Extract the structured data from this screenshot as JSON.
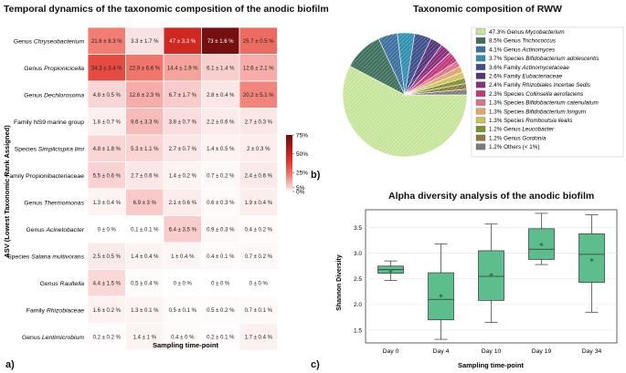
{
  "panels": {
    "a": {
      "title": "Temporal dynamics of the taxonomic composition of the anodic biofilm",
      "label": "a)",
      "ylabel": "ASV (Lowest Taxonomic Rank Assigned)",
      "xlabel": "Sampling time-point"
    },
    "b": {
      "title": "Taxonomic composition of RWW",
      "label": "b)"
    },
    "c": {
      "title": "Alpha diversity analysis of the anodic biofilm",
      "label": "c)",
      "ylabel": "Shannon Diversity",
      "xlabel": "Sampling time-point"
    }
  },
  "colors": {
    "heat_low": "#ffffff",
    "heat_high": "#6e0e0e",
    "box_fill": "#5dbd8d",
    "box_edge": "#333333",
    "mean_marker": "#2d7d55"
  },
  "chart_data": [
    {
      "type": "heatmap",
      "title": "Temporal dynamics of the taxonomic composition of the anodic biofilm",
      "xlabel": "Sampling time-point",
      "ylabel": "ASV (Lowest Taxonomic Rank Assigned)",
      "columns": [
        "Day 0",
        "Day 4",
        "Day 10",
        "Day 19",
        "Day 34"
      ],
      "rows": [
        {
          "prefix": "Genus ",
          "name": "Chryseobacterium",
          "italic": true
        },
        {
          "prefix": "Genus ",
          "name": "Propionicicella",
          "italic": true
        },
        {
          "prefix": "Genus ",
          "name": "Dechlorosoma",
          "italic": true
        },
        {
          "prefix": "",
          "name": "Family NS9 marine group",
          "italic": false
        },
        {
          "prefix": "Species ",
          "name": "Simplicispira limi",
          "italic": true
        },
        {
          "prefix": "",
          "name": "Family Propionibacteriaceae",
          "italic": false
        },
        {
          "prefix": "Genus ",
          "name": "Thermomonas",
          "italic": true
        },
        {
          "prefix": "Genus ",
          "name": "Acinetobacter",
          "italic": true
        },
        {
          "prefix": "Species ",
          "name": "Salana multivorans",
          "italic": true
        },
        {
          "prefix": "Genus ",
          "name": "Raultella",
          "italic": true
        },
        {
          "prefix": "Family ",
          "name": "Rhizobiaceae",
          "italic": true
        },
        {
          "prefix": "Genus ",
          "name": "Lentimicrobium",
          "italic": true
        }
      ],
      "values": [
        [
          21.6,
          3.3,
          47,
          73,
          25.7
        ],
        [
          34.3,
          22.9,
          14.4,
          6.1,
          12.6
        ],
        [
          4.8,
          12.6,
          6.7,
          2.8,
          20.2
        ],
        [
          1.8,
          9.6,
          3.8,
          2.2,
          2.7
        ],
        [
          4.8,
          5.3,
          2.7,
          1.4,
          2
        ],
        [
          5.5,
          2.7,
          1.4,
          0.7,
          2.4
        ],
        [
          1.3,
          6.9,
          2.1,
          0.6,
          1.9
        ],
        [
          0,
          0.1,
          6.4,
          0.9,
          0.4
        ],
        [
          2.5,
          1.4,
          1,
          0.4,
          0.7
        ],
        [
          4.4,
          0.5,
          0,
          0,
          0
        ],
        [
          1.6,
          1.3,
          0.5,
          0.5,
          0.7
        ],
        [
          0.2,
          1.4,
          0.4,
          0.2,
          1.7
        ]
      ],
      "labels": [
        [
          "21.6 ± 8.3 %",
          "3.3 ± 1.7 %",
          "47 ± 3.3 %",
          "73 ± 1.6 %",
          "25.7 ± 0.5 %"
        ],
        [
          "34.3 ± 3.4 %",
          "22.9 ± 6.6 %",
          "14.4 ± 1.9 %",
          "6.1 ± 1.4 %",
          "12.6 ± 2.1 %"
        ],
        [
          "4.8 ± 0.5 %",
          "12.6 ± 2.3 %",
          "6.7 ± 1.7 %",
          "2.8 ± 0.4 %",
          "20.2 ± 5.1 %"
        ],
        [
          "1.8 ± 0.7 %",
          "9.6 ± 3.3 %",
          "3.8 ± 0.7 %",
          "2.2 ± 0.6 %",
          "2.7 ± 0.3 %"
        ],
        [
          "4.8 ± 1.8 %",
          "5.3 ± 1.1 %",
          "2.7 ± 0.7 %",
          "1.4 ± 0.5 %",
          "2 ± 0.3 %"
        ],
        [
          "5.5 ± 0.6 %",
          "2.7 ± 0.6 %",
          "1.4 ± 0.2 %",
          "0.7 ± 0.2 %",
          "2.4 ± 0.6 %"
        ],
        [
          "1.3 ± 0.4 %",
          "6.9 ± 3 %",
          "2.1 ± 0.6 %",
          "0.6 ± 0.3 %",
          "1.9 ± 0.4 %"
        ],
        [
          "0 ± 0 %",
          "0.1 ± 0.1 %",
          "6.4 ± 3.5 %",
          "0.9 ± 0.3 %",
          "0.4 ± 0.2 %"
        ],
        [
          "2.5 ± 0.5 %",
          "1.4 ± 0.4 %",
          "1 ± 0.4 %",
          "0.4 ± 0.1 %",
          "0.7 ± 0.2 %"
        ],
        [
          "4.4 ± 1.5 %",
          "0.5 ± 0.4 %",
          "0 ± 0 %",
          "0 ± 0 %",
          "0 ± 0 %"
        ],
        [
          "1.6 ± 0.2 %",
          "1.3 ± 0.1 %",
          "0.5 ± 0.1 %",
          "0.5 ± 0.2 %",
          "0.7 ± 0.1 %"
        ],
        [
          "0.2 ± 0.2 %",
          "1.4 ± 1 %",
          "0.4 ± 0 %",
          "0.2 ± 0.1 %",
          "1.7 ± 0.4 %"
        ]
      ],
      "colorbar": {
        "ticks": [
          75,
          50,
          25,
          5,
          0
        ],
        "tick_labels": [
          "75%",
          "50%",
          "25%",
          "5%",
          "0%"
        ],
        "range": [
          0,
          75
        ]
      }
    },
    {
      "type": "pie",
      "title": "Taxonomic composition of RWW",
      "slices": [
        {
          "value": 47.3,
          "label": "47.3%",
          "prefix": "Genus ",
          "name": "Mycobacterium",
          "italic": true,
          "color": "#c6e59a"
        },
        {
          "value": 8.5,
          "label": "8.5%",
          "prefix": "Genus ",
          "name": "Trichococcus",
          "italic": true,
          "color": "#3d6f5c"
        },
        {
          "value": 4.1,
          "label": "4.1%",
          "prefix": "Genus ",
          "name": "Actinomyces",
          "italic": true,
          "color": "#3b6fa0"
        },
        {
          "value": 3.7,
          "label": "3.7%",
          "prefix": "Species ",
          "name": "Bifidobacterium adolescentis",
          "italic": true,
          "color": "#2f8fb0"
        },
        {
          "value": 3.6,
          "label": "3.6%",
          "prefix": "Family ",
          "name": "Actinomycetaceae",
          "italic": true,
          "color": "#3d4f8a"
        },
        {
          "value": 2.6,
          "label": "2.6%",
          "prefix": "Family ",
          "name": "Eubacteriaceae",
          "italic": true,
          "color": "#53347a"
        },
        {
          "value": 2.4,
          "label": "2.4%",
          "prefix": "Family ",
          "name": "Rhizobiales Incertae Sedis",
          "italic": true,
          "color": "#8a2f7a"
        },
        {
          "value": 2.3,
          "label": "2.3%",
          "prefix": "Species ",
          "name": "Collinsella aerofaciens",
          "italic": true,
          "color": "#c2387a"
        },
        {
          "value": 1.3,
          "label": "1.3%",
          "prefix": "Species ",
          "name": "Bifidobacterium catenulatum",
          "italic": true,
          "color": "#e0708a"
        },
        {
          "value": 1.3,
          "label": "1.3%",
          "prefix": "Species ",
          "name": "Bifidobacterium longum",
          "italic": true,
          "color": "#e3a36a"
        },
        {
          "value": 1.3,
          "label": "1.3%",
          "prefix": "Species ",
          "name": "Romboutsia ilealis",
          "italic": true,
          "color": "#c9c45a"
        },
        {
          "value": 1.2,
          "label": "1.2%",
          "prefix": "Genus ",
          "name": "Leucobacter",
          "italic": true,
          "color": "#7f8f2f"
        },
        {
          "value": 1.2,
          "label": "1.2%",
          "prefix": "Genus ",
          "name": "Gordonia",
          "italic": true,
          "color": "#8b7a3a"
        },
        {
          "value": 1.2,
          "label": "1.2%",
          "prefix": "",
          "name": "Others (< 1%)",
          "italic": false,
          "color": "#7a7a7a"
        }
      ]
    },
    {
      "type": "box",
      "title": "Alpha diversity analysis of the anodic biofilm",
      "xlabel": "Sampling time-point",
      "ylabel": "Shannon Diversity",
      "categories": [
        "Day 0",
        "Day 4",
        "Day 10",
        "Day 19",
        "Day 34"
      ],
      "ylim": [
        1.25,
        3.85
      ],
      "yticks": [
        1.5,
        2.0,
        2.5,
        3.0,
        3.5
      ],
      "ytick_labels": [
        "1.5",
        "2.0",
        "2.5",
        "3.0",
        "3.5"
      ],
      "boxes": [
        {
          "min": 2.47,
          "q1": 2.61,
          "median": 2.68,
          "q3": 2.75,
          "max": 2.85,
          "mean": 2.65
        },
        {
          "min": 1.32,
          "q1": 1.7,
          "median": 2.1,
          "q3": 2.62,
          "max": 3.18,
          "mean": 2.17
        },
        {
          "min": 1.65,
          "q1": 2.08,
          "median": 2.55,
          "q3": 3.05,
          "max": 3.57,
          "mean": 2.58
        },
        {
          "min": 2.78,
          "q1": 2.88,
          "median": 3.08,
          "q3": 3.48,
          "max": 3.78,
          "mean": 3.17
        },
        {
          "min": 1.85,
          "q1": 2.43,
          "median": 2.98,
          "q3": 3.38,
          "max": 3.75,
          "mean": 2.87
        }
      ]
    }
  ]
}
